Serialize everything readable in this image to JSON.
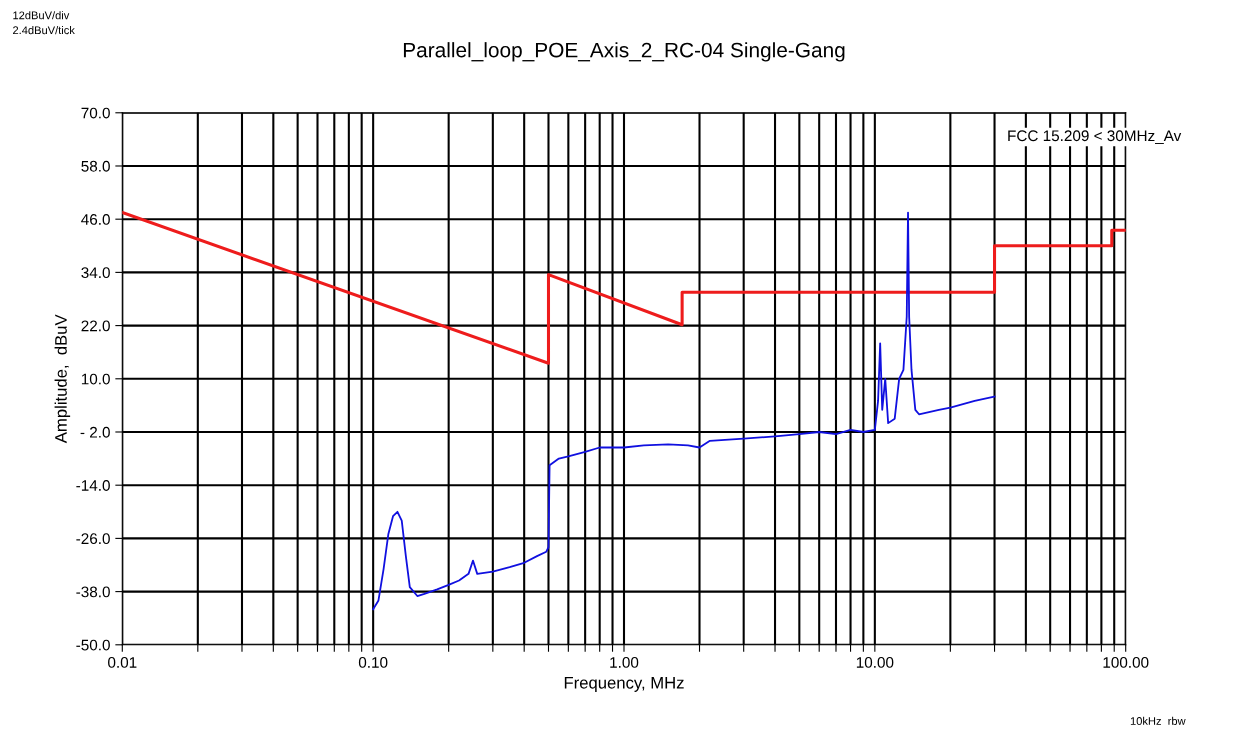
{
  "chart_data": {
    "type": "line",
    "title": "Parallel_loop_POE_Axis_2_RC-04 Single-Gang",
    "xlabel": "Frequency, MHz",
    "ylabel": "Amplitude,  dBuV",
    "log": "x",
    "grid": true,
    "legend": false,
    "marker": "none",
    "line_style": "solid",
    "xlim": [
      0.01,
      100
    ],
    "ylim": [
      -50,
      70
    ],
    "xticks": [
      {
        "value": 0.01,
        "label": "0.01"
      },
      {
        "value": 0.02,
        "label": null
      },
      {
        "value": 0.03,
        "label": null
      },
      {
        "value": 0.04,
        "label": null
      },
      {
        "value": 0.05,
        "label": null
      },
      {
        "value": 0.06,
        "label": null
      },
      {
        "value": 0.07,
        "label": null
      },
      {
        "value": 0.08,
        "label": null
      },
      {
        "value": 0.09,
        "label": null
      },
      {
        "value": 0.1,
        "label": "0.10"
      },
      {
        "value": 0.2,
        "label": null
      },
      {
        "value": 0.3,
        "label": null
      },
      {
        "value": 0.4,
        "label": null
      },
      {
        "value": 0.5,
        "label": null
      },
      {
        "value": 0.6,
        "label": null
      },
      {
        "value": 0.7,
        "label": null
      },
      {
        "value": 0.8,
        "label": null
      },
      {
        "value": 0.9,
        "label": null
      },
      {
        "value": 1,
        "label": "1.00"
      },
      {
        "value": 2,
        "label": null
      },
      {
        "value": 3,
        "label": null
      },
      {
        "value": 4,
        "label": null
      },
      {
        "value": 5,
        "label": null
      },
      {
        "value": 6,
        "label": null
      },
      {
        "value": 7,
        "label": null
      },
      {
        "value": 8,
        "label": null
      },
      {
        "value": 9,
        "label": null
      },
      {
        "value": 10,
        "label": "10.00"
      },
      {
        "value": 20,
        "label": null
      },
      {
        "value": 30,
        "label": null
      },
      {
        "value": 40,
        "label": null
      },
      {
        "value": 50,
        "label": null
      },
      {
        "value": 60,
        "label": null
      },
      {
        "value": 70,
        "label": null
      },
      {
        "value": 80,
        "label": null
      },
      {
        "value": 90,
        "label": null
      },
      {
        "value": 100,
        "label": "100.00"
      }
    ],
    "yticks": [
      {
        "value": 70,
        "label": "70.0"
      },
      {
        "value": 58,
        "label": "58.0"
      },
      {
        "value": 46,
        "label": "46.0"
      },
      {
        "value": 34,
        "label": "34.0"
      },
      {
        "value": 22,
        "label": "22.0"
      },
      {
        "value": 10,
        "label": "10.0"
      },
      {
        "value": -2,
        "label": "- 2.0"
      },
      {
        "value": -14,
        "label": "-14.0"
      },
      {
        "value": -26,
        "label": "-26.0"
      },
      {
        "value": -38,
        "label": "-38.0"
      },
      {
        "value": -50,
        "label": "-50.0"
      }
    ],
    "series": [
      {
        "name": "FCC 15.209 < 30MHz_Av",
        "color": "#ee1c1c",
        "x": [
          0.01,
          0.5,
          0.5,
          1.705,
          1.705,
          30,
          30,
          88,
          88,
          100
        ],
        "values": [
          47.5,
          13.5,
          33.5,
          22.2,
          29.5,
          29.5,
          40,
          40,
          43.5,
          43.5
        ]
      },
      {
        "color": "#1010e0",
        "x": [
          0.1,
          0.105,
          0.11,
          0.115,
          0.12,
          0.125,
          0.13,
          0.135,
          0.14,
          0.15,
          0.16,
          0.18,
          0.2,
          0.22,
          0.24,
          0.25,
          0.26,
          0.3,
          0.35,
          0.4,
          0.45,
          0.49,
          0.5,
          0.505,
          0.55,
          0.6,
          0.7,
          0.8,
          1.0,
          1.2,
          1.5,
          1.8,
          2.0,
          2.2,
          3,
          4,
          5,
          6,
          7,
          8,
          9,
          10,
          10.3,
          10.5,
          10.7,
          11,
          11.3,
          12,
          12.5,
          13,
          13.4,
          13.56,
          13.7,
          14,
          14.5,
          15,
          18,
          20,
          25,
          30
        ],
        "values": [
          -42,
          -40,
          -33,
          -25,
          -21,
          -20,
          -22,
          -30,
          -37,
          -39,
          -38.5,
          -37.5,
          -36.5,
          -35.5,
          -34,
          -31,
          -34,
          -33.5,
          -32.5,
          -31.5,
          -30,
          -29,
          -28,
          -9.5,
          -8,
          -7.5,
          -6.5,
          -5.5,
          -5.5,
          -5,
          -4.8,
          -5,
          -5.5,
          -4,
          -3.5,
          -3,
          -2.5,
          -2,
          -2.5,
          -1.5,
          -2,
          -1.5,
          5,
          18,
          3,
          10,
          0,
          1,
          10,
          12,
          24,
          47.5,
          24,
          12,
          3,
          2,
          3,
          3.5,
          5,
          6
        ]
      }
    ],
    "annotations": [
      "12dBuV/div",
      "2.4dBuV/tick",
      "10kHz  rbw"
    ]
  }
}
